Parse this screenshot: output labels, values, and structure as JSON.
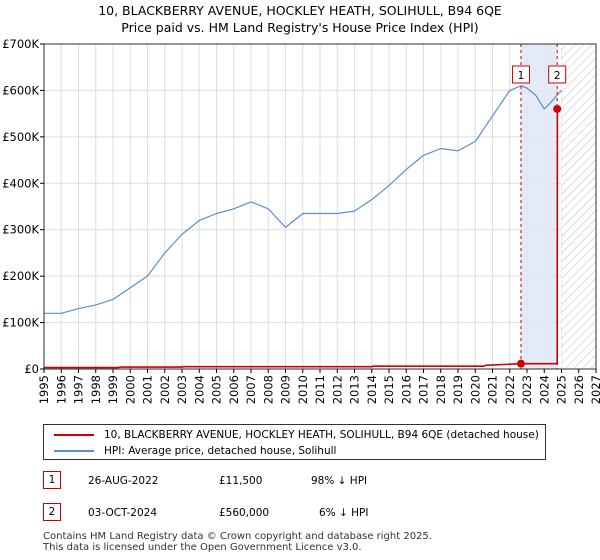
{
  "chart_data": {
    "type": "line",
    "title": "10, BLACKBERRY AVENUE, HOCKLEY HEATH, SOLIHULL, B94 6QE",
    "subtitle": "Price paid vs. HM Land Registry's House Price Index (HPI)",
    "xlabel": "",
    "ylabel": "",
    "xlim": [
      1995,
      2027
    ],
    "ylim": [
      0,
      700000
    ],
    "x_ticks": [
      "1995",
      "1996",
      "1997",
      "1998",
      "1999",
      "2000",
      "2001",
      "2002",
      "2003",
      "2004",
      "2005",
      "2006",
      "2007",
      "2008",
      "2009",
      "2010",
      "2011",
      "2012",
      "2013",
      "2014",
      "2015",
      "2016",
      "2017",
      "2018",
      "2019",
      "2020",
      "2021",
      "2022",
      "2023",
      "2024",
      "2025",
      "2026",
      "2027"
    ],
    "y_ticks": [
      "£0",
      "£100K",
      "£200K",
      "£300K",
      "£400K",
      "£500K",
      "£600K",
      "£700K"
    ],
    "y_tick_values": [
      0,
      100000,
      200000,
      300000,
      400000,
      500000,
      600000,
      700000
    ],
    "series": [
      {
        "name": "10, BLACKBERRY AVENUE, HOCKLEY HEATH, SOLIHULL, B94 6QE (detached house)",
        "color": "#cc0000",
        "points": [
          [
            1995.0,
            3000
          ],
          [
            1999.3,
            3000
          ],
          [
            1999.4,
            4000
          ],
          [
            2003.0,
            4000
          ],
          [
            2003.1,
            5000
          ],
          [
            2014.0,
            5000
          ],
          [
            2014.1,
            6000
          ],
          [
            2020.5,
            6000
          ],
          [
            2020.6,
            8000
          ],
          [
            2022.65,
            11500
          ],
          [
            2024.75,
            11500
          ],
          [
            2024.76,
            560000
          ]
        ]
      },
      {
        "name": "HPI: Average price, detached house, Solihull",
        "color": "#5b8fd0",
        "points": [
          [
            1995.0,
            120000
          ],
          [
            1996.0,
            120000
          ],
          [
            1997.0,
            130000
          ],
          [
            1998.0,
            138000
          ],
          [
            1999.0,
            150000
          ],
          [
            2000.0,
            175000
          ],
          [
            2001.0,
            200000
          ],
          [
            2002.0,
            250000
          ],
          [
            2003.0,
            290000
          ],
          [
            2004.0,
            320000
          ],
          [
            2005.0,
            335000
          ],
          [
            2006.0,
            345000
          ],
          [
            2007.0,
            360000
          ],
          [
            2008.0,
            345000
          ],
          [
            2009.0,
            305000
          ],
          [
            2010.0,
            335000
          ],
          [
            2011.0,
            335000
          ],
          [
            2012.0,
            335000
          ],
          [
            2013.0,
            340000
          ],
          [
            2014.0,
            365000
          ],
          [
            2015.0,
            395000
          ],
          [
            2016.0,
            430000
          ],
          [
            2017.0,
            460000
          ],
          [
            2018.0,
            475000
          ],
          [
            2019.0,
            470000
          ],
          [
            2020.0,
            490000
          ],
          [
            2021.0,
            545000
          ],
          [
            2022.0,
            600000
          ],
          [
            2022.65,
            610000
          ],
          [
            2023.0,
            605000
          ],
          [
            2023.5,
            590000
          ],
          [
            2024.0,
            560000
          ],
          [
            2024.4,
            575000
          ],
          [
            2024.75,
            590000
          ],
          [
            2025.0,
            600000
          ]
        ]
      }
    ],
    "annotations": [
      {
        "label": "1",
        "x": 2022.65,
        "y": 11500
      },
      {
        "label": "2",
        "x": 2024.75,
        "y": 560000
      }
    ],
    "projection_start": 2025.0,
    "grid": true,
    "legend_position": "bottom"
  },
  "legend": {
    "property_label": "10, BLACKBERRY AVENUE, HOCKLEY HEATH, SOLIHULL, B94 6QE (detached house)",
    "hpi_label": "HPI: Average price, detached house, Solihull",
    "property_color": "#cc0000",
    "hpi_color": "#5b8fd0"
  },
  "transactions": [
    {
      "num": "1",
      "date": "26-AUG-2022",
      "price": "£11,500",
      "hpi": "98% ↓ HPI"
    },
    {
      "num": "2",
      "date": "03-OCT-2024",
      "price": "£560,000",
      "hpi": "6% ↓ HPI"
    }
  ],
  "footer": {
    "line1": "Contains HM Land Registry data © Crown copyright and database right 2025.",
    "line2": "This data is licensed under the Open Government Licence v3.0."
  }
}
